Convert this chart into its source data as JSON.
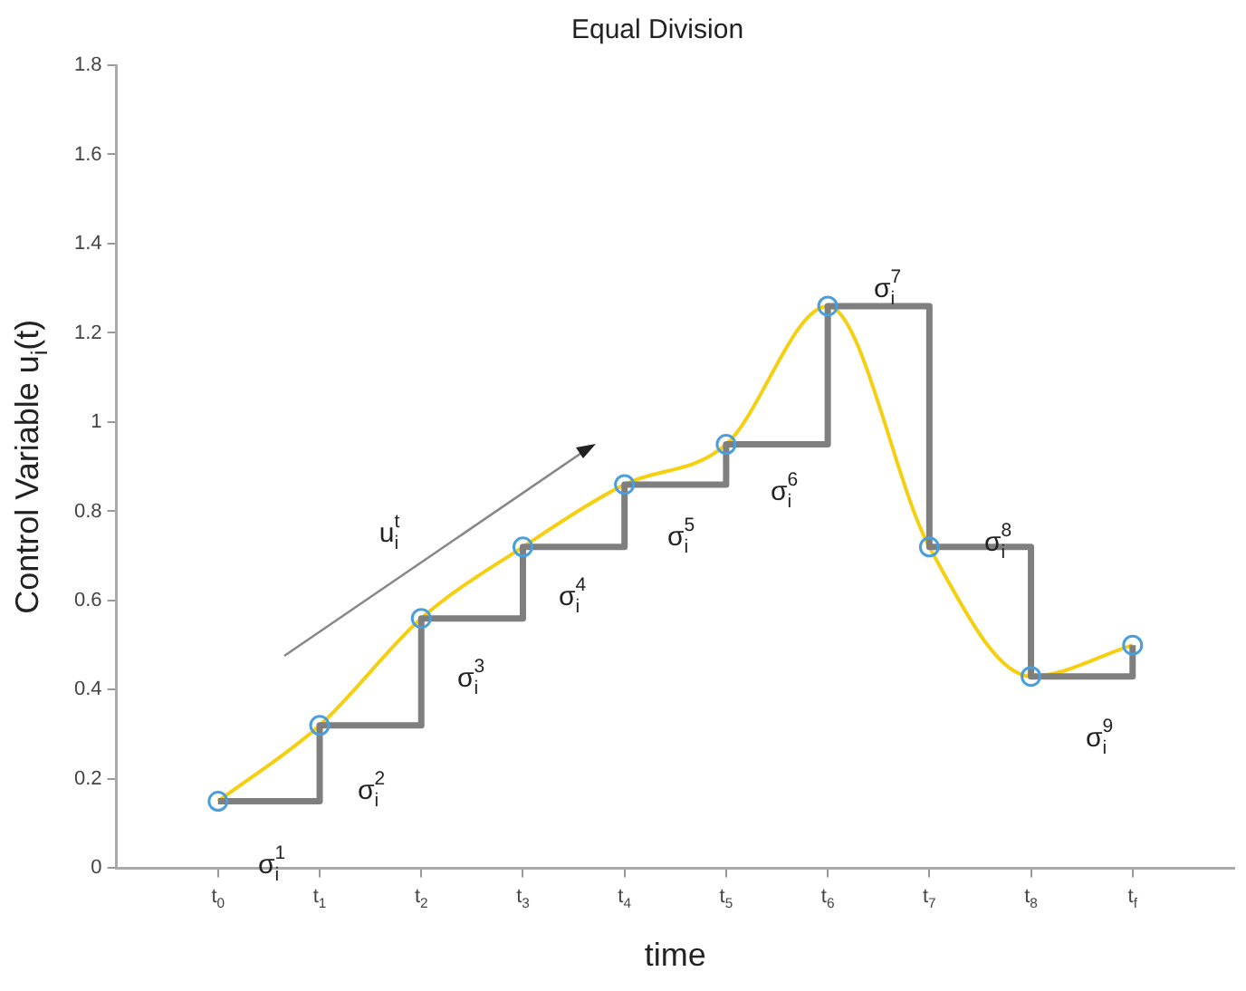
{
  "chart_data": {
    "type": "line",
    "title": "Equal Division",
    "xlabel": "time",
    "ylabel": "Control Variable u$_{i}$(t)",
    "x": [
      0,
      1,
      2,
      3,
      4,
      5,
      6,
      7,
      8,
      9
    ],
    "xlim": [
      -1,
      10
    ],
    "xticks": [
      {
        "value": 0,
        "label": "t$_{0}$"
      },
      {
        "value": 1,
        "label": "t$_{1}$"
      },
      {
        "value": 2,
        "label": "t$_{2}$"
      },
      {
        "value": 3,
        "label": "t$_{3}$"
      },
      {
        "value": 4,
        "label": "t$_{4}$"
      },
      {
        "value": 5,
        "label": "t$_{5}$"
      },
      {
        "value": 6,
        "label": "t$_{6}$"
      },
      {
        "value": 7,
        "label": "t$_{7}$"
      },
      {
        "value": 8,
        "label": "t$_{8}$"
      },
      {
        "value": 9,
        "label": "t$_{f}$"
      }
    ],
    "ylim": [
      0,
      1.8
    ],
    "yticks": [
      0,
      0.2,
      0.4,
      0.6,
      0.8,
      1,
      1.2,
      1.4,
      1.6,
      1.8
    ],
    "grid": false,
    "legend": false,
    "series": [
      {
        "type": "line",
        "color": "#f5cf10",
        "marker": "none",
        "values": [
          0.15,
          0.32,
          0.56,
          0.72,
          0.86,
          0.95,
          1.26,
          0.72,
          0.43,
          0.5
        ]
      },
      {
        "type": "step",
        "color": "#7f7f7f",
        "marker": "none",
        "values": [
          0.15,
          0.32,
          0.56,
          0.72,
          0.86,
          0.95,
          1.26,
          0.72,
          0.43,
          0.5
        ]
      },
      {
        "type": "scatter",
        "color": "#4a9fdb",
        "marker": "circle",
        "values": [
          0.15,
          0.32,
          0.56,
          0.72,
          0.86,
          0.95,
          1.26,
          0.72,
          0.43,
          0.5
        ]
      }
    ],
    "annotations": [
      "σ$_{i}$$^{1}$",
      "σ$_{i}$$^{2}$",
      "σ$_{i}$$^{3}$",
      "σ$_{i}$$^{4}$",
      "σ$_{i}$$^{5}$",
      "σ$_{i}$$^{6}$",
      "σ$_{i}$$^{7}$",
      "σ$_{i}$$^{8}$",
      "σ$_{i}$$^{9}$",
      "u$_{i}$$^{t}$"
    ]
  }
}
